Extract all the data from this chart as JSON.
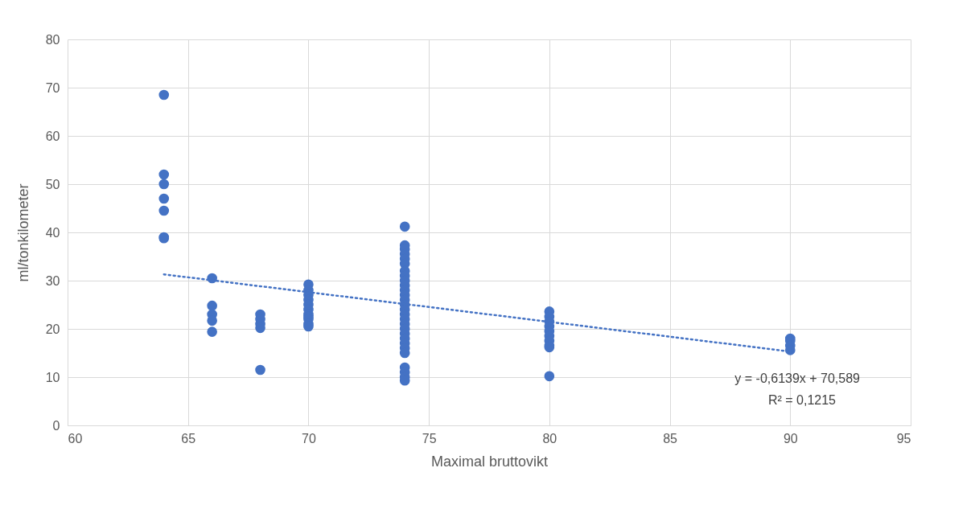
{
  "chart_data": {
    "type": "scatter",
    "xlabel": "Maximal bruttovikt",
    "ylabel": "ml/tonkilometer",
    "series": [
      {
        "color": "#4472c4",
        "x": [
          64,
          64,
          64,
          64,
          64,
          64,
          64,
          66,
          66,
          66,
          66,
          66,
          68,
          68,
          68,
          68,
          68,
          70,
          70,
          70,
          70,
          70,
          70,
          70,
          70,
          70,
          70,
          70,
          74,
          74,
          74,
          74,
          74,
          74,
          74,
          74,
          74,
          74,
          74,
          74,
          74,
          74,
          74,
          74,
          74,
          74,
          74,
          74,
          74,
          74,
          74,
          74,
          74,
          74,
          74,
          74,
          80,
          80,
          80,
          80,
          80,
          80,
          80,
          80,
          80,
          80,
          90,
          90,
          90,
          90
        ],
        "values": [
          68.5,
          52,
          50,
          47,
          44.5,
          39,
          38.8,
          30.5,
          24.8,
          23,
          21.7,
          19.4,
          23,
          22,
          21,
          20.2,
          11.5,
          29.2,
          28,
          27,
          26,
          25,
          24,
          23,
          22.5,
          22,
          21,
          20.5,
          41.2,
          37.3,
          36.5,
          35.5,
          34.5,
          33.5,
          32,
          31,
          30,
          29,
          28,
          27,
          26,
          25,
          24,
          23,
          22,
          21,
          20,
          19,
          18,
          17,
          16,
          15,
          12,
          11,
          10,
          9.3,
          23.6,
          22.5,
          21.5,
          20.5,
          19.5,
          18.5,
          17.5,
          16.5,
          16.2,
          10.2,
          18,
          17.5,
          16.5,
          15.6
        ]
      },
      {
        "type": "line",
        "color": "#4472c4",
        "line_style": "dotted",
        "marker": "none",
        "x": [
          64,
          90
        ],
        "values": [
          31.3,
          15.3
        ]
      }
    ],
    "xlim": [
      60,
      95
    ],
    "xticks": [
      60,
      65,
      70,
      75,
      80,
      85,
      90,
      95
    ],
    "ylim": [
      0,
      80
    ],
    "yticks": [
      0,
      10,
      20,
      30,
      40,
      50,
      60,
      70,
      80
    ],
    "grid": true,
    "annotations": [
      "y = -0,6139x + 70,589",
      "R² = 0,1215"
    ]
  }
}
